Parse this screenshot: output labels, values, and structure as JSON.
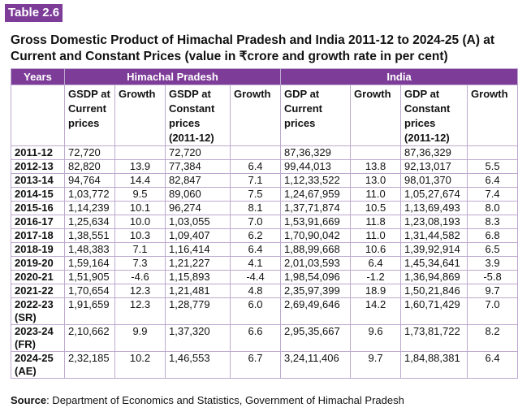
{
  "badge": "Table 2.6",
  "title": "Gross Domestic Product of Himachal Pradesh and India 2011-12 to 2024-25 (A) at Current and Constant Prices (value in ₹crore and growth rate in per cent)",
  "header": {
    "years": "Years",
    "group1": "Himachal Pradesh",
    "group2": "India",
    "cols": [
      "GSDP at Current prices",
      "Growth",
      "GSDP at Constant prices (2011-12)",
      "Growth",
      "GDP at Current prices",
      "Growth",
      "GDP at Constant prices (2011-12)",
      "Growth"
    ]
  },
  "rows": [
    [
      "2011-12",
      "72,720",
      "",
      "72,720",
      "",
      "87,36,329",
      "",
      "87,36,329",
      ""
    ],
    [
      "2012-13",
      "82,820",
      "13.9",
      "77,384",
      "6.4",
      "99,44,013",
      "13.8",
      "92,13,017",
      "5.5"
    ],
    [
      "2013-14",
      "94,764",
      "14.4",
      "82,847",
      "7.1",
      "1,12,33,522",
      "13.0",
      "98,01,370",
      "6.4"
    ],
    [
      "2014-15",
      "1,03,772",
      "9.5",
      "89,060",
      "7.5",
      "1,24,67,959",
      "11.0",
      "1,05,27,674",
      "7.4"
    ],
    [
      "2015-16",
      "1,14,239",
      "10.1",
      "96,274",
      "8.1",
      "1,37,71,874",
      "10.5",
      "1,13,69,493",
      "8.0"
    ],
    [
      "2016-17",
      "1,25,634",
      "10.0",
      "1,03,055",
      "7.0",
      "1,53,91,669",
      "11.8",
      "1,23,08,193",
      "8.3"
    ],
    [
      "2017-18",
      "1,38,551",
      "10.3",
      "1,09,407",
      "6.2",
      "1,70,90,042",
      "11.0",
      "1,31,44,582",
      "6.8"
    ],
    [
      "2018-19",
      "1,48,383",
      "7.1",
      "1,16,414",
      "6.4",
      "1,88,99,668",
      "10.6",
      "1,39,92,914",
      "6.5"
    ],
    [
      "2019-20",
      "1,59,164",
      "7.3",
      "1,21,227",
      "4.1",
      "2,01,03,593",
      "6.4",
      "1,45,34,641",
      "3.9"
    ],
    [
      "2020-21",
      "1,51,905",
      "-4.6",
      "1,15,893",
      "-4.4",
      "1,98,54,096",
      "-1.2",
      "1,36,94,869",
      "-5.8"
    ],
    [
      "2021-22",
      "1,70,654",
      "12.3",
      "1,21,481",
      "4.8",
      "2,35,97,399",
      "18.9",
      "1,50,21,846",
      "9.7"
    ],
    [
      "2022-23 (SR)",
      "1,91,659",
      "12.3",
      "1,28,779",
      "6.0",
      "2,69,49,646",
      "14.2",
      "1,60,71,429",
      "7.0"
    ],
    [
      "2023-24 (FR)",
      "2,10,662",
      "9.9",
      "1,37,320",
      "6.6",
      "2,95,35,667",
      "9.6",
      "1,73,81,722",
      "8.2"
    ],
    [
      "2024-25 (AE)",
      "2,32,185",
      "10.2",
      "1,46,553",
      "6.7",
      "3,24,11,406",
      "9.7",
      "1,84,88,381",
      "6.4"
    ]
  ],
  "source_label": "Source",
  "source_text": ": Department of Economics and Statistics, Government of Himachal Pradesh",
  "colors": {
    "accent": "#7d3c98",
    "border": "#bda9cf"
  }
}
